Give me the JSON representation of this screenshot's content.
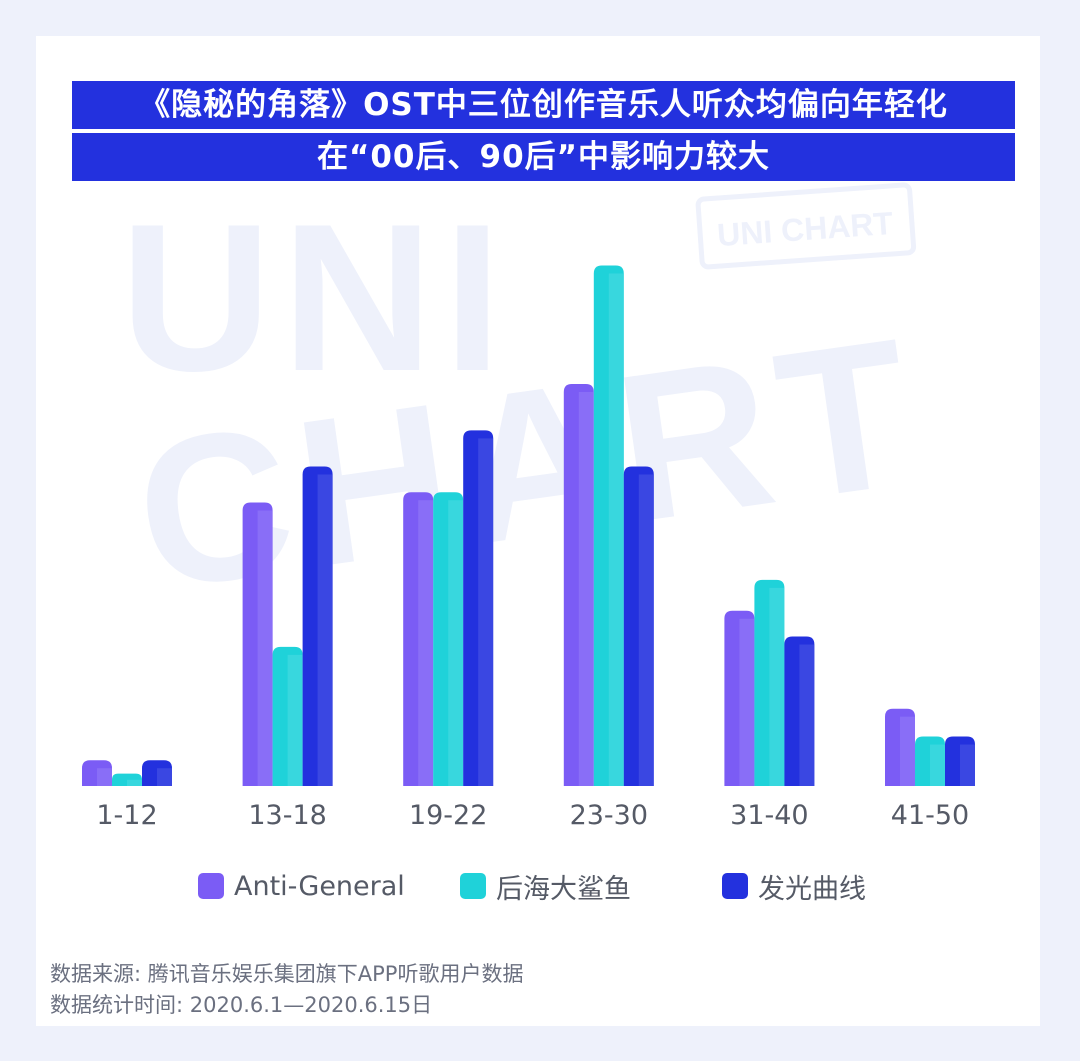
{
  "title": {
    "line1": "《隐秘的角落》OST中三位创作音乐人听众均偏向年轻化",
    "line2": "在“00后、90后”中影响力较大"
  },
  "watermark": {
    "text": "UNI CHART"
  },
  "chart_data": {
    "type": "bar",
    "categories": [
      "1-12",
      "13-18",
      "19-22",
      "23-30",
      "31-40",
      "41-50"
    ],
    "series": [
      {
        "name": "Anti-General",
        "color": "#7b5cf5",
        "values": [
          2.5,
          27.5,
          28.5,
          39,
          17,
          7.5
        ]
      },
      {
        "name": "后海大鲨鱼",
        "color": "#1fd2d9",
        "values": [
          1.2,
          13.5,
          28.5,
          50.5,
          20,
          4.8
        ]
      },
      {
        "name": "发光曲线",
        "color": "#2331de",
        "values": [
          2.5,
          31,
          34.5,
          31,
          14.5,
          4.8
        ]
      }
    ],
    "ylim": [
      0,
      52
    ],
    "grid": false,
    "legend_position": "bottom",
    "title": "",
    "xlabel": "",
    "ylabel": ""
  },
  "source": {
    "line1": "数据来源: 腾讯音乐娱乐集团旗下APP听歌用户数据",
    "line2": "数据统计时间: 2020.6.1—2020.6.15日"
  }
}
